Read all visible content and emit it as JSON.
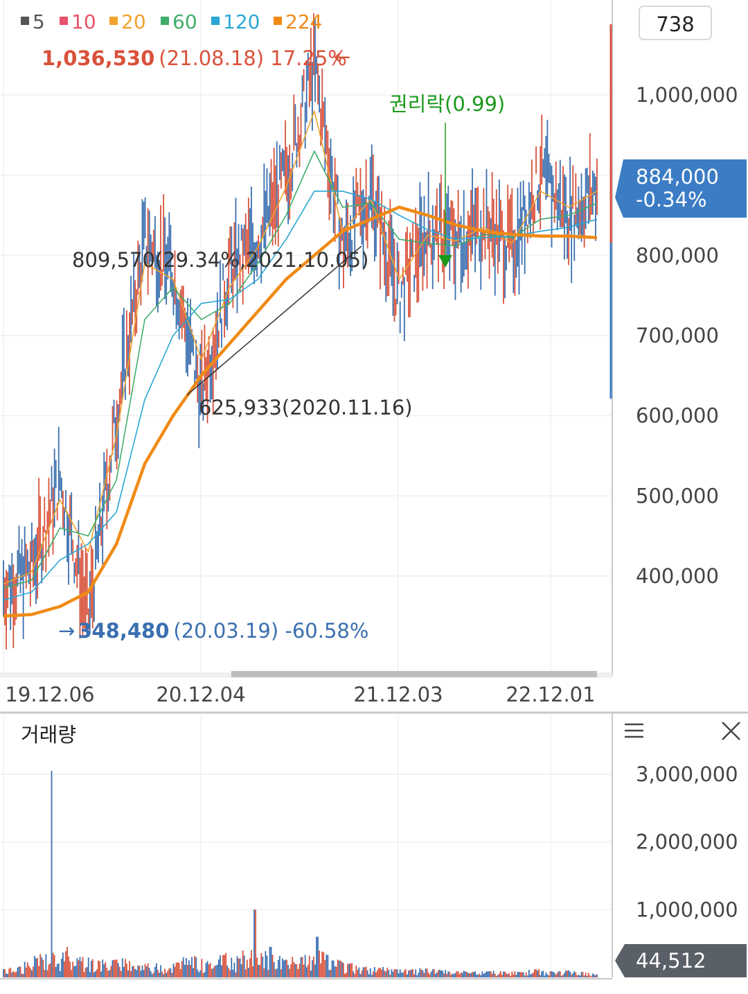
{
  "legend": [
    {
      "label": "5",
      "color": "#555555"
    },
    {
      "label": "10",
      "color": "#e8526a"
    },
    {
      "label": "20",
      "color": "#f0a32c"
    },
    {
      "label": "60",
      "color": "#3fae6a"
    },
    {
      "label": "120",
      "color": "#2aa7d4"
    },
    {
      "label": "224",
      "color": "#f08a14"
    }
  ],
  "toolbar": {
    "count_value": "738"
  },
  "price_panel": {
    "high_marker": {
      "value": "1,036,530",
      "detail": "(21.08.18) 17.25%",
      "arrow": "←",
      "color": "#d9513a"
    },
    "low_marker": {
      "value": "348,480",
      "detail": "(20.03.19) -60.58%",
      "arrow": "→",
      "color": "#3a6fb0"
    },
    "trend_annotation_high": "809,570(29.34%,2021.10.05)",
    "trend_annotation_low": "625,933(2020.11.16)",
    "rights_event": {
      "label": "권리락(0.99)",
      "color": "#1a9a1a"
    },
    "current_price": {
      "price": "884,000",
      "change": "-0.34%",
      "bg_color": "#3b7cc4"
    },
    "y_tick_labels": [
      "1,000,000",
      "900,000",
      "800,000",
      "700,000",
      "600,000",
      "500,000",
      "400,000"
    ]
  },
  "x_axis_labels": [
    "19.12.06",
    "20.12.04",
    "21.12.03",
    "22.12.01"
  ],
  "volume_panel": {
    "title": "거래량",
    "menu_icon": "hamburger-menu-icon",
    "close_icon": "close-icon",
    "y_tick_labels": [
      "3,000,000",
      "2,000,000",
      "1,000,000"
    ],
    "current_volume": {
      "value": "44,512",
      "bg_color": "#5a6068"
    }
  },
  "chart_data": [
    {
      "type": "line",
      "title": "",
      "xlabel": "",
      "ylabel": "",
      "x_tick_labels": [
        "19.12.06",
        "20.12.04",
        "21.12.03",
        "22.12.01"
      ],
      "ylim": [
        300000,
        1080000
      ],
      "y_ticks": [
        400000,
        500000,
        600000,
        700000,
        800000,
        900000,
        1000000
      ],
      "grid": true,
      "legend_position": "top-left",
      "x": [
        "19.12.06",
        "20.01",
        "20.02",
        "20.03.19",
        "20.05",
        "20.07",
        "20.09",
        "20.11.16",
        "21.01",
        "21.03",
        "21.05",
        "21.08.18",
        "21.10.05",
        "21.12.03",
        "22.02",
        "22.04",
        "22.06",
        "22.08",
        "22.10",
        "22.12.01",
        "23.01",
        "23.02"
      ],
      "series": [
        {
          "name": "5",
          "values": [
            385000,
            410000,
            520000,
            348480,
            600000,
            820000,
            780000,
            625933,
            780000,
            820000,
            900000,
            1036530,
            809570,
            880000,
            750000,
            830000,
            820000,
            840000,
            810000,
            900000,
            850000,
            884000
          ]
        },
        {
          "name": "20",
          "values": [
            390000,
            405000,
            495000,
            430000,
            575000,
            790000,
            770000,
            670000,
            760000,
            810000,
            885000,
            980000,
            830000,
            870000,
            770000,
            825000,
            818000,
            835000,
            815000,
            880000,
            860000,
            880000
          ]
        },
        {
          "name": "60",
          "values": [
            385000,
            395000,
            460000,
            450000,
            520000,
            720000,
            760000,
            720000,
            740000,
            790000,
            850000,
            930000,
            860000,
            865000,
            820000,
            815000,
            812000,
            826000,
            822000,
            845000,
            850000,
            865000
          ]
        },
        {
          "name": "120",
          "values": [
            370000,
            380000,
            420000,
            440000,
            480000,
            620000,
            700000,
            740000,
            745000,
            770000,
            820000,
            880000,
            880000,
            870000,
            850000,
            832000,
            820000,
            822000,
            824000,
            830000,
            835000,
            845000
          ]
        },
        {
          "name": "224",
          "values": [
            350000,
            352000,
            362000,
            380000,
            440000,
            540000,
            600000,
            650000,
            690000,
            730000,
            770000,
            800000,
            830000,
            845000,
            860000,
            850000,
            838000,
            830000,
            826000,
            824000,
            824000,
            822000
          ]
        }
      ],
      "annotations": [
        {
          "text": "1,036,530 (21.08.18) 17.25%",
          "x": "21.08.18",
          "y": 1036530
        },
        {
          "text": "348,480 (20.03.19) -60.58%",
          "x": "20.03.19",
          "y": 348480
        },
        {
          "text": "809,570(29.34%,2021.10.05)",
          "x": "21.10.05",
          "y": 809570
        },
        {
          "text": "625,933(2020.11.16)",
          "x": "20.11.16",
          "y": 625933
        },
        {
          "text": "권리락(0.99)",
          "x": "22.03"
        }
      ]
    },
    {
      "type": "bar",
      "title": "거래량",
      "ylim": [
        0,
        3100000
      ],
      "y_ticks": [
        1000000,
        2000000,
        3000000
      ],
      "grid": true,
      "categories": [
        "19.12.06",
        "20.01",
        "20.02",
        "20.03",
        "20.04",
        "20.05",
        "20.06",
        "20.07",
        "20.08",
        "20.09",
        "20.10",
        "20.11",
        "20.12",
        "21.01",
        "21.02",
        "21.03",
        "21.04",
        "21.05",
        "21.06",
        "21.07",
        "21.08",
        "21.09",
        "21.10",
        "21.11",
        "21.12",
        "22.01",
        "22.02",
        "22.03",
        "22.04",
        "22.05",
        "22.06",
        "22.07",
        "22.08",
        "22.09",
        "22.10",
        "22.11",
        "22.12",
        "23.01",
        "23.02"
      ],
      "values": [
        120000,
        160000,
        280000,
        3050000,
        450000,
        300000,
        250000,
        260000,
        240000,
        200000,
        180000,
        220000,
        300000,
        240000,
        330000,
        280000,
        1000000,
        450000,
        260000,
        300000,
        600000,
        250000,
        200000,
        150000,
        140000,
        120000,
        110000,
        130000,
        100000,
        90000,
        80000,
        90000,
        85000,
        80000,
        120000,
        90000,
        100000,
        80000,
        44512
      ]
    }
  ]
}
